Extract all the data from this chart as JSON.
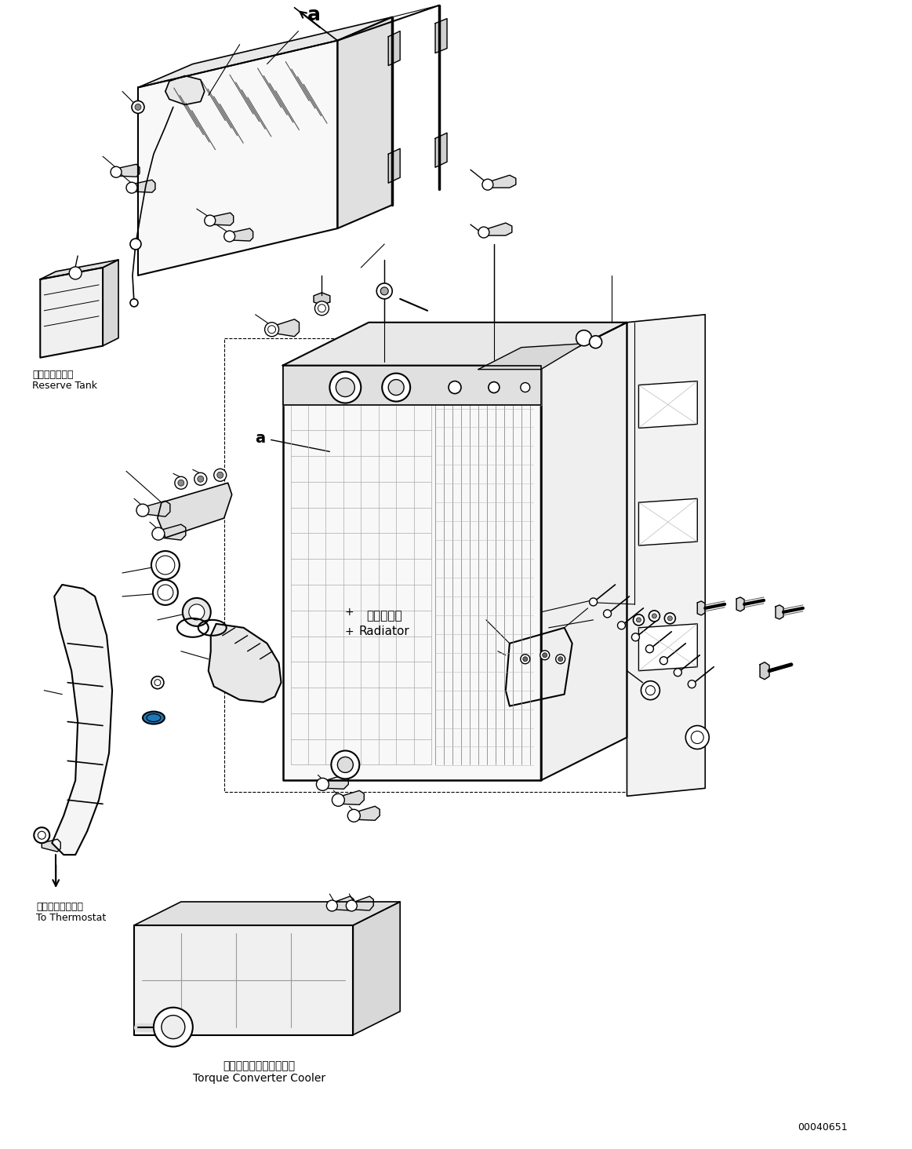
{
  "background_color": "#ffffff",
  "line_color": "#000000",
  "fig_width": 11.63,
  "fig_height": 14.64,
  "dpi": 100,
  "labels": {
    "reserve_tank_jp": "リザーブタンク",
    "reserve_tank_en": "Reserve Tank",
    "radiator_jp": "ラジエータ",
    "radiator_en": "Radiator",
    "thermostat_jp": "サーモスタットへ",
    "thermostat_en": "To Thermostat",
    "torque_converter_jp": "トルクコンバータクーラ",
    "torque_converter_en": "Torque Converter Cooler",
    "part_number": "00040651",
    "label_a_top": "a",
    "label_a_mid": "a"
  }
}
